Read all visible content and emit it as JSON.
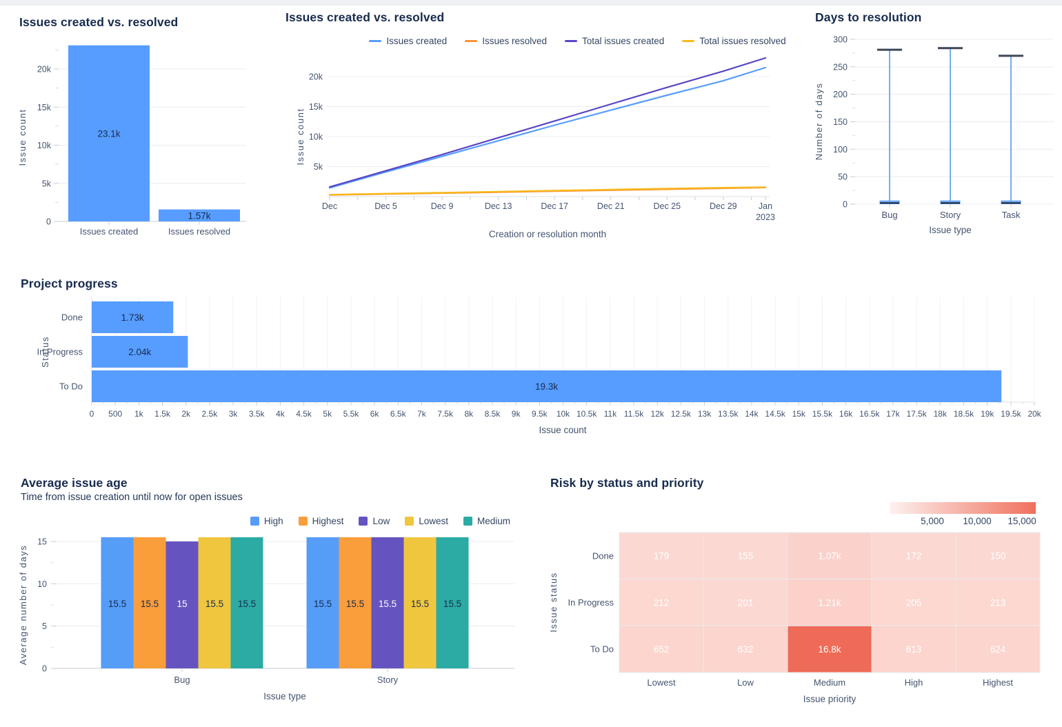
{
  "page": {
    "background": "#FFFFFF",
    "top_strip_color": "#EEF0F3"
  },
  "chart_data": [
    {
      "type": "bar",
      "title": "Issues created vs. resolved",
      "xlabel": "",
      "ylabel": "Issue count",
      "categories": [
        "Issues created",
        "Issues resolved"
      ],
      "values": [
        23100,
        1570
      ],
      "value_labels": [
        "23.1k",
        "1.57k"
      ],
      "yticks": [
        0,
        5000,
        10000,
        15000,
        20000
      ],
      "ytick_labels": [
        "0",
        "5k",
        "10k",
        "15k",
        "20k"
      ],
      "ylim": [
        0,
        23100
      ],
      "grid": true,
      "bar_color": "#579DFF"
    },
    {
      "type": "line",
      "title": "Issues created vs. resolved",
      "xlabel": "Creation or resolution month",
      "ylabel": "Issue count",
      "legend_position": "top",
      "grid": true,
      "x_days": [
        1,
        5,
        9,
        13,
        17,
        21,
        25,
        29,
        32
      ],
      "x_labels": [
        "Dec",
        "Dec 5",
        "Dec 9",
        "Dec 13",
        "Dec 17",
        "Dec 21",
        "Dec 25",
        "Dec 29",
        [
          "Jan",
          "2023"
        ]
      ],
      "yticks": [
        5000,
        10000,
        15000,
        20000
      ],
      "ytick_labels": [
        "5k",
        "10k",
        "15k",
        "20k"
      ],
      "ylim": [
        0,
        23100
      ],
      "series": [
        {
          "name": "Issues created",
          "color": "#579DFF",
          "values": [
            1450,
            4100,
            6700,
            9300,
            11900,
            14400,
            16900,
            19300,
            21500
          ]
        },
        {
          "name": "Issues resolved",
          "color": "#FB9332",
          "values": [
            260,
            420,
            580,
            740,
            900,
            1060,
            1220,
            1380,
            1500
          ]
        },
        {
          "name": "Total issues created",
          "color": "#5746C6",
          "values": [
            1600,
            4300,
            7000,
            9800,
            12600,
            15400,
            18200,
            20900,
            23100
          ]
        },
        {
          "name": "Total issues resolved",
          "color": "#F7BA1E",
          "values": [
            320,
            490,
            660,
            830,
            1000,
            1170,
            1340,
            1480,
            1570
          ]
        }
      ]
    },
    {
      "type": "boxplot",
      "title": "Days to resolution",
      "xlabel": "Issue type",
      "ylabel": "Number of days",
      "yticks": [
        0,
        50,
        100,
        150,
        200,
        250,
        300
      ],
      "ytick_labels": [
        "0",
        "50",
        "100",
        "150",
        "200",
        "250",
        "300"
      ],
      "ylim": [
        0,
        300
      ],
      "colors": {
        "whisker": "#76ACF1",
        "cap": "#3B4656",
        "box_fill": "#7FB0F5",
        "box_stroke": "#4C9AFF",
        "median": "#0B1A33"
      },
      "items": [
        {
          "category": "Bug",
          "min": 0,
          "q1": 1,
          "median": 2,
          "q3": 6,
          "max": 281
        },
        {
          "category": "Story",
          "min": 0,
          "q1": 1,
          "median": 2,
          "q3": 6,
          "max": 284
        },
        {
          "category": "Task",
          "min": 0,
          "q1": 1,
          "median": 2,
          "q3": 6,
          "max": 270
        }
      ]
    },
    {
      "type": "hbar",
      "title": "Project progress",
      "xlabel": "Issue count",
      "ylabel": "Status",
      "categories": [
        "Done",
        "In Progress",
        "To Do"
      ],
      "values": [
        1730,
        2040,
        19300
      ],
      "value_labels": [
        "1.73k",
        "2.04k",
        "19.3k"
      ],
      "xlim": [
        0,
        20000
      ],
      "xtick_step": 500,
      "grid": true,
      "bar_color": "#579DFF",
      "xtick_labels": [
        "0",
        "500",
        "1k",
        "1.5k",
        "2k",
        "2.5k",
        "3k",
        "3.5k",
        "4k",
        "4.5k",
        "5k",
        "5.5k",
        "6k",
        "6.5k",
        "7k",
        "7.5k",
        "8k",
        "8.5k",
        "9k",
        "9.5k",
        "10k",
        "10.5k",
        "11k",
        "11.5k",
        "12k",
        "12.5k",
        "13k",
        "13.5k",
        "14k",
        "14.5k",
        "15k",
        "15.5k",
        "16k",
        "16.5k",
        "17k",
        "17.5k",
        "18k",
        "18.5k",
        "19k",
        "19.5k",
        "20k"
      ]
    },
    {
      "type": "grouped_bar",
      "title": "Average issue age",
      "subtitle": "Time from issue creation until now for open issues",
      "xlabel": "Issue type",
      "ylabel": "Average number of days",
      "legend_position": "top-right",
      "categories": [
        "Bug",
        "Story"
      ],
      "yticks": [
        0,
        5,
        10,
        15
      ],
      "ytick_labels": [
        "0",
        "5",
        "10",
        "15"
      ],
      "ylim": [
        0,
        15.5
      ],
      "series": [
        {
          "name": "High",
          "color": "#569DF8",
          "values": [
            15.5,
            15.5
          ],
          "value_labels": [
            "15.5",
            "15.5"
          ]
        },
        {
          "name": "Highest",
          "color": "#FA9D3B",
          "values": [
            15.5,
            15.5
          ],
          "value_labels": [
            "15.5",
            "15.5"
          ]
        },
        {
          "name": "Low",
          "color": "#6554C0",
          "values": [
            15,
            15.5
          ],
          "value_labels": [
            "15",
            "15.5"
          ],
          "label_color": "#FFFFFF"
        },
        {
          "name": "Lowest",
          "color": "#F0C63F",
          "values": [
            15.5,
            15.5
          ],
          "value_labels": [
            "15.5",
            "15.5"
          ]
        },
        {
          "name": "Medium",
          "color": "#2BABA4",
          "values": [
            15.5,
            15.5
          ],
          "value_labels": [
            "15.5",
            "15.5"
          ]
        }
      ]
    },
    {
      "type": "heatmap",
      "title": "Risk by status and priority",
      "xlabel": "Issue priority",
      "ylabel": "Issue status",
      "rows": [
        "Done",
        "In Progress",
        "To Do"
      ],
      "cols": [
        "Lowest",
        "Low",
        "Medium",
        "High",
        "Highest"
      ],
      "values": [
        [
          179,
          155,
          1070,
          172,
          150
        ],
        [
          212,
          201,
          1210,
          205,
          213
        ],
        [
          652,
          632,
          16800,
          613,
          624
        ]
      ],
      "value_labels": [
        [
          "179",
          "155",
          "1.07k",
          "172",
          "150"
        ],
        [
          "212",
          "201",
          "1.21k",
          "205",
          "213"
        ],
        [
          "652",
          "632",
          "16.8k",
          "613",
          "624"
        ]
      ],
      "scale": {
        "max": 16800,
        "min_color": "#FCD9D3",
        "max_color": "#EE6B57",
        "legend_start": "#FDF1EF",
        "legend_end": "#F0705C",
        "ticks": [
          "5,000",
          "10,000",
          "15,000"
        ]
      }
    }
  ]
}
